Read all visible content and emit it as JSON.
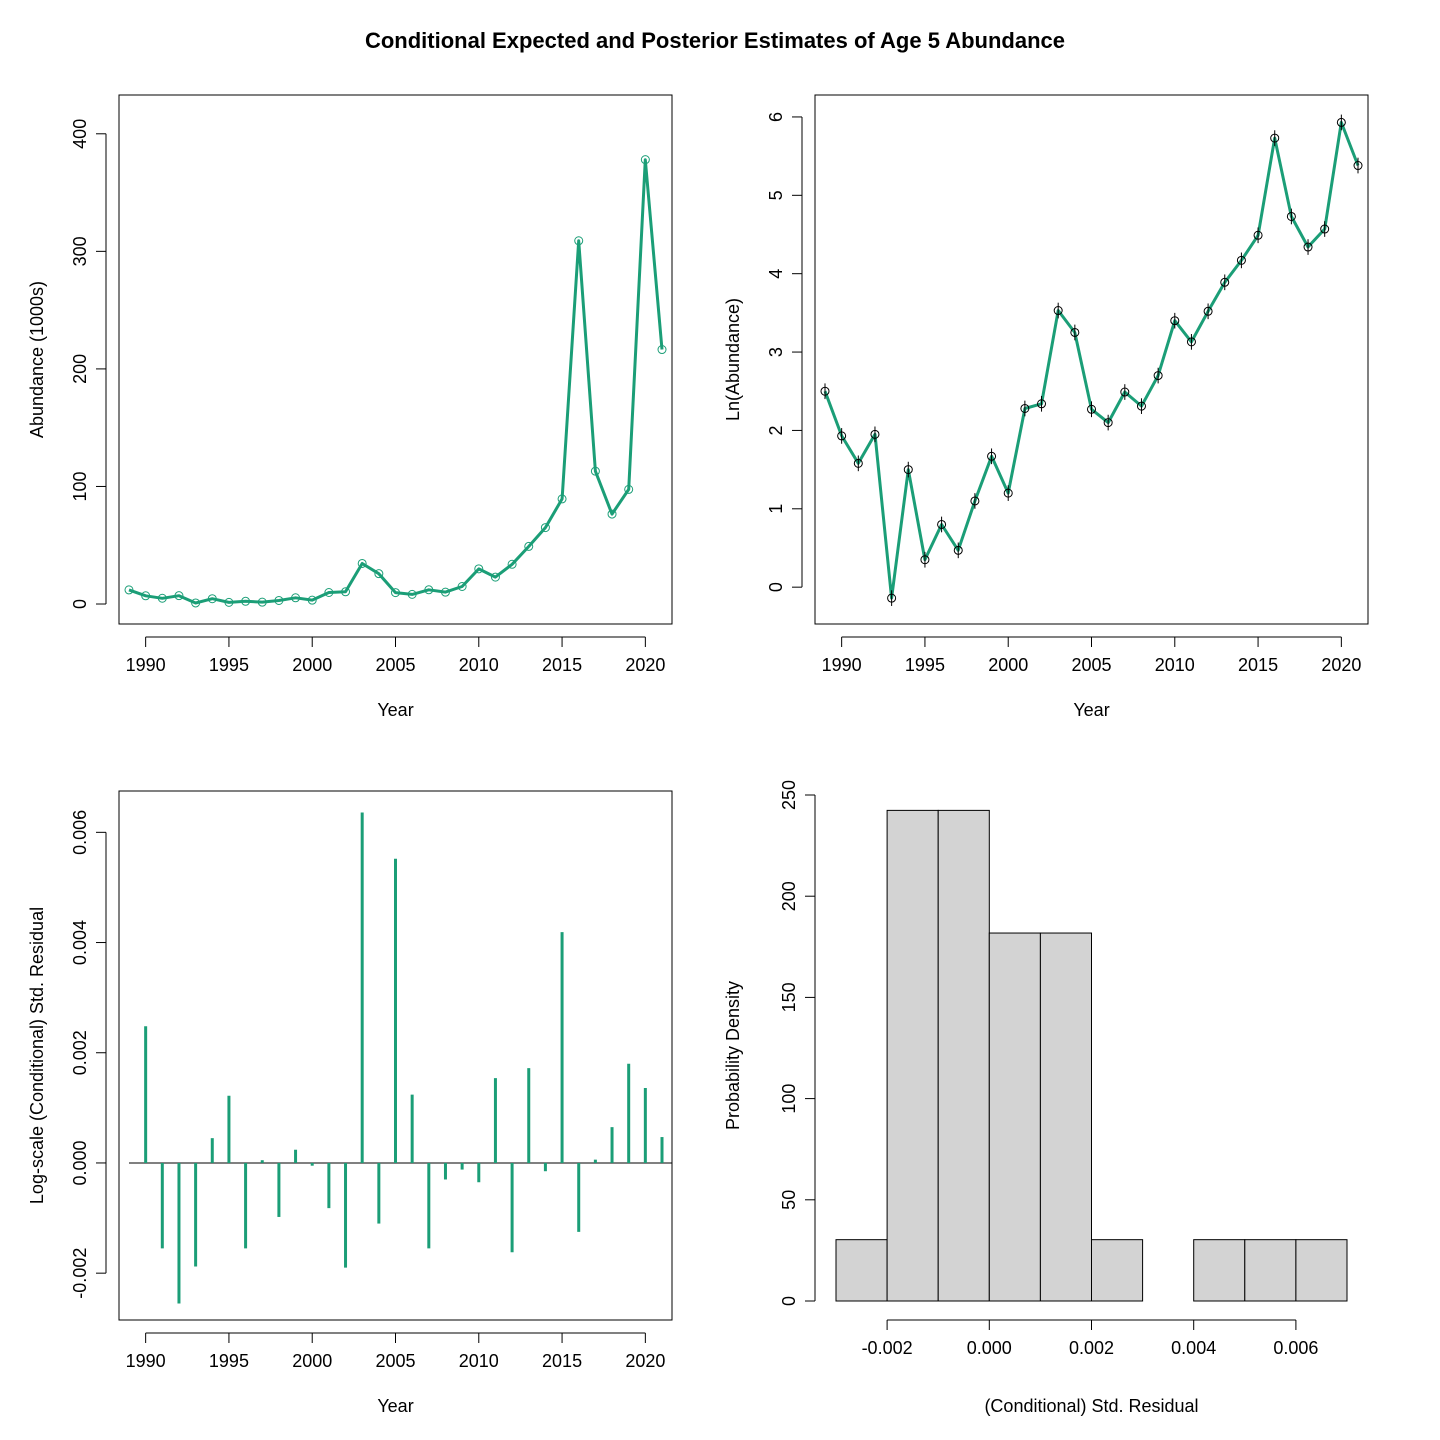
{
  "title": "Conditional Expected and Posterior Estimates of Age 5 Abundance",
  "colors": {
    "series": "#1B9E77",
    "points": "#000000",
    "hist_fill": "#D3D3D3",
    "axis": "#000000"
  },
  "chart_data": [
    {
      "type": "line",
      "xlabel": "Year",
      "ylabel": "Abundance (1000s)",
      "xlim": [
        1988.4,
        2021.6
      ],
      "ylim": [
        -17,
        433
      ],
      "x_ticks": [
        1990,
        1995,
        2000,
        2005,
        2010,
        2015,
        2020
      ],
      "y_ticks": [
        0,
        100,
        200,
        300,
        400
      ],
      "x": [
        1989,
        1990,
        1991,
        1992,
        1993,
        1994,
        1995,
        1996,
        1997,
        1998,
        1999,
        2000,
        2001,
        2002,
        2003,
        2004,
        2005,
        2006,
        2007,
        2008,
        2009,
        2010,
        2011,
        2012,
        2013,
        2014,
        2015,
        2016,
        2017,
        2018,
        2019,
        2020,
        2021
      ],
      "series": [
        {
          "values": [
            12.0,
            7.0,
            4.9,
            7.1,
            0.9,
            4.5,
            1.4,
            2.3,
            1.6,
            3.0,
            5.3,
            3.3,
            9.8,
            10.4,
            34.5,
            25.8,
            9.7,
            8.2,
            12.1,
            10.1,
            14.9,
            29.9,
            22.9,
            33.8,
            49.0,
            65.0,
            89.4,
            309.0,
            113.0,
            76.5,
            97.5,
            378.0,
            216.5
          ]
        }
      ],
      "points": [
        12.0,
        7.0,
        4.9,
        7.1,
        0.9,
        4.5,
        1.4,
        2.3,
        1.6,
        3.0,
        5.3,
        3.3,
        9.8,
        10.4,
        34.5,
        25.8,
        9.7,
        8.2,
        12.1,
        10.1,
        14.9,
        29.9,
        22.9,
        33.8,
        49.0,
        65.0,
        89.4,
        309.0,
        113.0,
        76.5,
        97.5,
        378.0,
        216.5
      ]
    },
    {
      "type": "line",
      "xlabel": "Year",
      "ylabel": "Ln(Abundance)",
      "xlim": [
        1988.4,
        2021.6
      ],
      "ylim": [
        -0.47,
        6.28
      ],
      "x_ticks": [
        1990,
        1995,
        2000,
        2005,
        2010,
        2015,
        2020
      ],
      "y_ticks": [
        0,
        1,
        2,
        3,
        4,
        5,
        6
      ],
      "x": [
        1989,
        1990,
        1991,
        1992,
        1993,
        1994,
        1995,
        1996,
        1997,
        1998,
        1999,
        2000,
        2001,
        2002,
        2003,
        2004,
        2005,
        2006,
        2007,
        2008,
        2009,
        2010,
        2011,
        2012,
        2013,
        2014,
        2015,
        2016,
        2017,
        2018,
        2019,
        2020,
        2021
      ],
      "series": [
        {
          "values": [
            2.5,
            1.93,
            1.58,
            1.95,
            -0.14,
            1.5,
            0.35,
            0.8,
            0.47,
            1.1,
            1.67,
            1.2,
            2.28,
            2.34,
            3.53,
            3.25,
            2.27,
            2.1,
            2.49,
            2.31,
            2.7,
            3.4,
            3.13,
            3.52,
            3.89,
            4.17,
            4.49,
            5.73,
            4.73,
            4.34,
            4.57,
            5.93,
            5.38
          ]
        }
      ],
      "error_half_width": 0.1
    },
    {
      "type": "bar",
      "xlabel": "Year",
      "ylabel": "Log-scale (Conditional) Std. Residual",
      "xlim": [
        1988.4,
        2021.6
      ],
      "ylim": [
        -0.00285,
        0.00675
      ],
      "x_ticks": [
        1990,
        1995,
        2000,
        2005,
        2010,
        2015,
        2020
      ],
      "y_ticks": [
        -0.002,
        0.0,
        0.002,
        0.004,
        0.006
      ],
      "y_tick_labels": [
        "-0.002",
        "0.000",
        "0.002",
        "0.004",
        "0.006"
      ],
      "x": [
        1989,
        1990,
        1991,
        1992,
        1993,
        1994,
        1995,
        1996,
        1997,
        1998,
        1999,
        2000,
        2001,
        2002,
        2003,
        2004,
        2005,
        2006,
        2007,
        2008,
        2009,
        2010,
        2011,
        2012,
        2013,
        2014,
        2015,
        2016,
        2017,
        2018,
        2019,
        2020,
        2021
      ],
      "values": [
        0.0,
        0.00248,
        -0.00155,
        -0.00255,
        -0.00188,
        0.00045,
        0.00122,
        -0.00155,
        5e-05,
        -0.00098,
        0.00024,
        -5e-05,
        -0.00082,
        -0.0019,
        0.00636,
        -0.0011,
        0.00552,
        0.00124,
        -0.00155,
        -0.0003,
        -0.00012,
        -0.00035,
        0.00154,
        -0.00162,
        0.00172,
        -0.00015,
        0.00419,
        -0.00125,
        6e-05,
        0.00065,
        0.0018,
        0.00136,
        0.00047
      ]
    },
    {
      "type": "histogram",
      "xlabel": "(Conditional) Std. Residual",
      "ylabel": "Probability Density",
      "xlim": [
        -0.003,
        0.007
      ],
      "ylim": [
        0,
        250
      ],
      "x_ticks": [
        -0.002,
        0.0,
        0.002,
        0.004,
        0.006
      ],
      "x_tick_labels": [
        "-0.002",
        "0.000",
        "0.002",
        "0.004",
        "0.006"
      ],
      "y_ticks": [
        0,
        50,
        100,
        150,
        200,
        250
      ],
      "bin_edges": [
        -0.003,
        -0.002,
        -0.001,
        0.0,
        0.001,
        0.002,
        0.003,
        0.004,
        0.005,
        0.006,
        0.007
      ],
      "density": [
        30.3,
        242.4,
        242.4,
        181.8,
        181.8,
        30.3,
        0.0,
        30.3,
        30.3,
        30.3
      ]
    }
  ]
}
